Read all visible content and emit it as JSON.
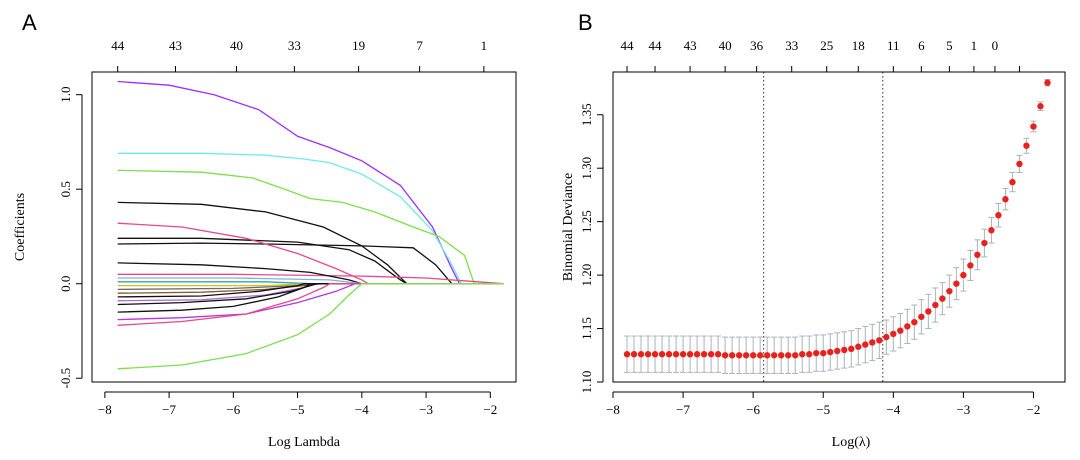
{
  "chart_data": [
    {
      "panel": "A",
      "type": "line",
      "xlabel": "Log Lambda",
      "ylabel": "Coefficients",
      "xlim": [
        -8.2,
        -1.6
      ],
      "ylim": [
        -0.52,
        1.12
      ],
      "x_ticks": [
        -8,
        -7,
        -6,
        -5,
        -4,
        -3,
        -2
      ],
      "y_ticks": [
        -0.5,
        0.0,
        0.5,
        1.0
      ],
      "y_tick_labels": [
        "-0.5",
        "0.0",
        "0.5",
        "1.0"
      ],
      "top_axis": {
        "ticks": [
          -7.8,
          -6.9,
          -5.95,
          -5.05,
          -4.05,
          -3.1,
          -2.1
        ],
        "labels": [
          "44",
          "43",
          "40",
          "33",
          "19",
          "7",
          "1"
        ]
      },
      "series": [
        {
          "color": "#9B30FF",
          "points": [
            [
              -7.8,
              1.07
            ],
            [
              -7.0,
              1.05
            ],
            [
              -6.3,
              1.0
            ],
            [
              -5.6,
              0.92
            ],
            [
              -5.0,
              0.78
            ],
            [
              -4.5,
              0.72
            ],
            [
              -4.0,
              0.65
            ],
            [
              -3.4,
              0.52
            ],
            [
              -2.9,
              0.3
            ],
            [
              -2.6,
              0.08
            ],
            [
              -2.48,
              0.0
            ],
            [
              -1.8,
              0.0
            ]
          ]
        },
        {
          "color": "#6EEAEA",
          "points": [
            [
              -7.8,
              0.69
            ],
            [
              -6.5,
              0.69
            ],
            [
              -5.5,
              0.68
            ],
            [
              -4.9,
              0.66
            ],
            [
              -4.5,
              0.64
            ],
            [
              -4.0,
              0.58
            ],
            [
              -3.4,
              0.46
            ],
            [
              -2.9,
              0.28
            ],
            [
              -2.6,
              0.1
            ],
            [
              -2.45,
              0.0
            ],
            [
              -1.8,
              0.0
            ]
          ]
        },
        {
          "color": "#7CE04A",
          "points": [
            [
              -7.8,
              0.6
            ],
            [
              -6.5,
              0.59
            ],
            [
              -5.7,
              0.56
            ],
            [
              -5.2,
              0.5
            ],
            [
              -4.8,
              0.45
            ],
            [
              -4.3,
              0.43
            ],
            [
              -3.8,
              0.38
            ],
            [
              -3.2,
              0.3
            ],
            [
              -2.8,
              0.25
            ],
            [
              -2.4,
              0.15
            ],
            [
              -2.25,
              0.0
            ],
            [
              -1.8,
              0.0
            ]
          ]
        },
        {
          "color": "#111111",
          "points": [
            [
              -7.8,
              0.43
            ],
            [
              -6.5,
              0.42
            ],
            [
              -5.5,
              0.38
            ],
            [
              -4.6,
              0.3
            ],
            [
              -4.0,
              0.2
            ],
            [
              -3.6,
              0.1
            ],
            [
              -3.3,
              0.0
            ],
            [
              -1.8,
              0.0
            ]
          ]
        },
        {
          "color": "#111111",
          "points": [
            [
              -7.8,
              0.24
            ],
            [
              -6.5,
              0.24
            ],
            [
              -5.0,
              0.22
            ],
            [
              -4.2,
              0.18
            ],
            [
              -3.8,
              0.12
            ],
            [
              -3.4,
              0.02
            ],
            [
              -3.3,
              0.0
            ],
            [
              -1.8,
              0.0
            ]
          ]
        },
        {
          "color": "#111111",
          "points": [
            [
              -7.8,
              0.21
            ],
            [
              -6.5,
              0.215
            ],
            [
              -5.5,
              0.21
            ],
            [
              -4.0,
              0.2
            ],
            [
              -3.2,
              0.19
            ],
            [
              -2.85,
              0.1
            ],
            [
              -2.6,
              0.0
            ],
            [
              -1.8,
              0.0
            ]
          ]
        },
        {
          "color": "#E8478C",
          "points": [
            [
              -7.8,
              0.32
            ],
            [
              -6.8,
              0.3
            ],
            [
              -5.8,
              0.24
            ],
            [
              -5.0,
              0.16
            ],
            [
              -4.4,
              0.08
            ],
            [
              -4.0,
              0.02
            ],
            [
              -3.9,
              0.0
            ],
            [
              -1.8,
              0.0
            ]
          ]
        },
        {
          "color": "#E8478C",
          "points": [
            [
              -7.8,
              0.05
            ],
            [
              -6.0,
              0.05
            ],
            [
              -4.0,
              0.04
            ],
            [
              -3.0,
              0.03
            ],
            [
              -2.2,
              0.01
            ],
            [
              -1.8,
              0.0
            ]
          ]
        },
        {
          "color": "#111111",
          "points": [
            [
              -7.8,
              0.11
            ],
            [
              -6.5,
              0.1
            ],
            [
              -5.5,
              0.08
            ],
            [
              -4.8,
              0.06
            ],
            [
              -4.2,
              0.02
            ],
            [
              -4.0,
              0.0
            ],
            [
              -1.8,
              0.0
            ]
          ]
        },
        {
          "color": "#7FB3D5",
          "points": [
            [
              -7.8,
              0.03
            ],
            [
              -6.0,
              0.03
            ],
            [
              -4.5,
              0.02
            ],
            [
              -4.0,
              0.0
            ],
            [
              -1.8,
              0.0
            ]
          ]
        },
        {
          "color": "#2FA8A8",
          "points": [
            [
              -7.8,
              0.01
            ],
            [
              -5.5,
              0.01
            ],
            [
              -4.8,
              0.0
            ],
            [
              -1.8,
              0.0
            ]
          ]
        },
        {
          "color": "#D4C21A",
          "points": [
            [
              -7.8,
              -0.01
            ],
            [
              -5.5,
              -0.01
            ],
            [
              -4.8,
              0.0
            ],
            [
              -1.8,
              0.0
            ]
          ]
        },
        {
          "color": "#6B6B6B",
          "points": [
            [
              -7.8,
              -0.03
            ],
            [
              -6.0,
              -0.025
            ],
            [
              -5.0,
              -0.01
            ],
            [
              -4.6,
              0.0
            ],
            [
              -1.8,
              0.0
            ]
          ]
        },
        {
          "color": "#8A5A2B",
          "points": [
            [
              -7.8,
              -0.05
            ],
            [
              -6.5,
              -0.045
            ],
            [
              -5.5,
              -0.03
            ],
            [
              -4.9,
              -0.01
            ],
            [
              -4.7,
              0.0
            ],
            [
              -1.8,
              0.0
            ]
          ]
        },
        {
          "color": "#111111",
          "points": [
            [
              -7.8,
              -0.07
            ],
            [
              -6.5,
              -0.065
            ],
            [
              -5.6,
              -0.04
            ],
            [
              -5.0,
              -0.01
            ],
            [
              -4.9,
              0.0
            ],
            [
              -1.8,
              0.0
            ]
          ]
        },
        {
          "color": "#B56BD6",
          "points": [
            [
              -7.8,
              -0.09
            ],
            [
              -6.5,
              -0.085
            ],
            [
              -5.5,
              -0.06
            ],
            [
              -4.9,
              -0.02
            ],
            [
              -4.7,
              0.0
            ],
            [
              -1.8,
              0.0
            ]
          ]
        },
        {
          "color": "#111111",
          "points": [
            [
              -7.8,
              -0.11
            ],
            [
              -6.8,
              -0.1
            ],
            [
              -5.8,
              -0.08
            ],
            [
              -5.1,
              -0.04
            ],
            [
              -4.8,
              -0.01
            ],
            [
              -4.7,
              0.0
            ],
            [
              -1.8,
              0.0
            ]
          ]
        },
        {
          "color": "#111111",
          "points": [
            [
              -7.8,
              -0.15
            ],
            [
              -6.8,
              -0.14
            ],
            [
              -6.0,
              -0.12
            ],
            [
              -5.3,
              -0.07
            ],
            [
              -4.9,
              -0.02
            ],
            [
              -4.8,
              0.0
            ],
            [
              -1.8,
              0.0
            ]
          ]
        },
        {
          "color": "#B535E0",
          "points": [
            [
              -7.8,
              -0.19
            ],
            [
              -6.8,
              -0.18
            ],
            [
              -5.8,
              -0.16
            ],
            [
              -5.0,
              -0.1
            ],
            [
              -4.4,
              -0.04
            ],
            [
              -4.1,
              0.0
            ],
            [
              -1.8,
              0.0
            ]
          ]
        },
        {
          "color": "#E8478C",
          "points": [
            [
              -7.8,
              -0.22
            ],
            [
              -6.8,
              -0.2
            ],
            [
              -5.8,
              -0.16
            ],
            [
              -5.0,
              -0.08
            ],
            [
              -4.6,
              -0.02
            ],
            [
              -4.5,
              0.0
            ],
            [
              -1.8,
              0.0
            ]
          ]
        },
        {
          "color": "#7CE04A",
          "points": [
            [
              -7.8,
              -0.45
            ],
            [
              -6.8,
              -0.43
            ],
            [
              -5.8,
              -0.37
            ],
            [
              -5.0,
              -0.27
            ],
            [
              -4.5,
              -0.16
            ],
            [
              -4.2,
              -0.06
            ],
            [
              -4.0,
              0.0
            ],
            [
              -1.8,
              0.0
            ]
          ]
        }
      ]
    },
    {
      "panel": "B",
      "type": "scatter",
      "xlabel": "Log(λ)",
      "ylabel": "Binomial Deviance",
      "xlim": [
        -8.0,
        -1.55
      ],
      "ylim": [
        1.1,
        1.39
      ],
      "x_ticks": [
        -8,
        -7,
        -6,
        -5,
        -4,
        -3,
        -2
      ],
      "y_ticks": [
        1.1,
        1.15,
        1.2,
        1.25,
        1.3,
        1.35
      ],
      "y_tick_labels": [
        "1.10",
        "1.15",
        "1.20",
        "1.25",
        "1.30",
        "1.35"
      ],
      "top_axis": {
        "ticks": [
          -7.8,
          -7.4,
          -6.9,
          -6.4,
          -5.95,
          -5.45,
          -4.95,
          -4.5,
          -4.0,
          -3.6,
          -3.2,
          -2.85,
          -2.55,
          -2.2
        ],
        "labels": [
          "44",
          "44",
          "43",
          "40",
          "36",
          "33",
          "25",
          "18",
          "11",
          "6",
          "5",
          "1",
          "0",
          ""
        ]
      },
      "vlines": [
        -5.85,
        -4.15
      ],
      "point_color": "#E8211C",
      "error_bar_color": "#A9B3BC",
      "x": [
        -7.8,
        -7.7,
        -7.6,
        -7.5,
        -7.4,
        -7.3,
        -7.2,
        -7.1,
        -7.0,
        -6.9,
        -6.8,
        -6.7,
        -6.6,
        -6.5,
        -6.4,
        -6.3,
        -6.2,
        -6.1,
        -6.0,
        -5.9,
        -5.8,
        -5.7,
        -5.6,
        -5.5,
        -5.4,
        -5.3,
        -5.2,
        -5.1,
        -5.0,
        -4.9,
        -4.8,
        -4.7,
        -4.6,
        -4.5,
        -4.4,
        -4.3,
        -4.2,
        -4.1,
        -4.0,
        -3.9,
        -3.8,
        -3.7,
        -3.6,
        -3.5,
        -3.4,
        -3.3,
        -3.2,
        -3.1,
        -3.0,
        -2.9,
        -2.8,
        -2.7,
        -2.6,
        -2.5,
        -2.4,
        -2.3,
        -2.2,
        -2.1,
        -2.0,
        -1.9,
        -1.8
      ],
      "y": [
        1.126,
        1.126,
        1.126,
        1.126,
        1.126,
        1.126,
        1.126,
        1.126,
        1.126,
        1.126,
        1.126,
        1.126,
        1.126,
        1.126,
        1.125,
        1.125,
        1.125,
        1.125,
        1.125,
        1.125,
        1.125,
        1.125,
        1.125,
        1.125,
        1.125,
        1.126,
        1.126,
        1.127,
        1.127,
        1.128,
        1.129,
        1.13,
        1.131,
        1.133,
        1.135,
        1.137,
        1.139,
        1.142,
        1.145,
        1.148,
        1.152,
        1.156,
        1.161,
        1.166,
        1.172,
        1.178,
        1.185,
        1.192,
        1.2,
        1.209,
        1.219,
        1.23,
        1.242,
        1.256,
        1.271,
        1.287,
        1.304,
        1.321,
        1.339,
        1.358,
        1.38
      ],
      "error": [
        0.017,
        0.017,
        0.017,
        0.017,
        0.017,
        0.017,
        0.017,
        0.017,
        0.017,
        0.017,
        0.017,
        0.017,
        0.017,
        0.017,
        0.017,
        0.017,
        0.017,
        0.017,
        0.017,
        0.017,
        0.017,
        0.017,
        0.017,
        0.017,
        0.017,
        0.017,
        0.017,
        0.017,
        0.017,
        0.017,
        0.017,
        0.017,
        0.017,
        0.017,
        0.017,
        0.017,
        0.017,
        0.016,
        0.016,
        0.016,
        0.016,
        0.016,
        0.016,
        0.016,
        0.016,
        0.015,
        0.015,
        0.015,
        0.015,
        0.014,
        0.014,
        0.013,
        0.012,
        0.011,
        0.01,
        0.009,
        0.008,
        0.007,
        0.005,
        0.004,
        0.003
      ]
    }
  ]
}
